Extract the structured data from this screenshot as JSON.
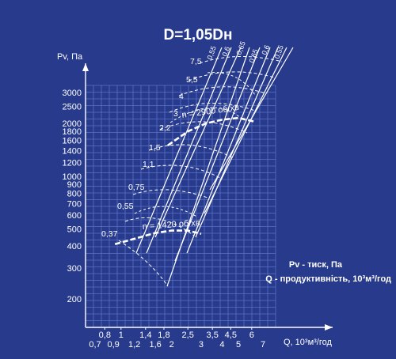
{
  "chart_data": {
    "type": "line",
    "title": "D=1,05Dн",
    "ylabel": "Pv, Па",
    "xlabel": "Q, 10³м³/год",
    "scale": "log-log",
    "grid": true,
    "ylim": [
      150,
      4000
    ],
    "xlim": [
      0.6,
      8
    ],
    "y_ticks": [
      200,
      300,
      400,
      500,
      600,
      700,
      800,
      900,
      1000,
      1200,
      1400,
      1600,
      1800,
      2000,
      2500,
      3000
    ],
    "x_ticks_upper": [
      "0,8",
      "1",
      "1,4",
      "1,8",
      "2,5",
      "3,5",
      "4,5",
      "6"
    ],
    "x_ticks_lower": [
      "0,7",
      "0,9",
      "1,2",
      "1,6",
      "2",
      "3",
      "4",
      "5",
      "7"
    ],
    "power_curve_labels": [
      "0,37",
      "0,55",
      "0,75",
      "1,1",
      "1,5",
      "2,2",
      "3",
      "4",
      "5,5",
      "7,5"
    ],
    "efficiency_labels": [
      "0,55",
      "0,6",
      "0,65",
      "0,65",
      "0,6",
      "0,55"
    ],
    "speed_labels": [
      "n = 2900 об/хв",
      "n = 1420 об/хв"
    ],
    "legend_notes": [
      "Pv - тиск, Па",
      "Q - продуктивність, 10³м³/год"
    ],
    "speed_curves": [
      {
        "name": "n = 2900 об/хв",
        "points": [
          [
            1.9,
            1500
          ],
          [
            2.5,
            1800
          ],
          [
            3.2,
            2000
          ],
          [
            4.0,
            2100
          ],
          [
            5.0,
            2150
          ],
          [
            6.2,
            2050
          ]
        ]
      },
      {
        "name": "n = 1420 об/хв",
        "points": [
          [
            0.92,
            410
          ],
          [
            1.2,
            440
          ],
          [
            1.6,
            475
          ],
          [
            2.0,
            490
          ],
          [
            2.5,
            490
          ],
          [
            3.0,
            470
          ]
        ]
      }
    ]
  }
}
